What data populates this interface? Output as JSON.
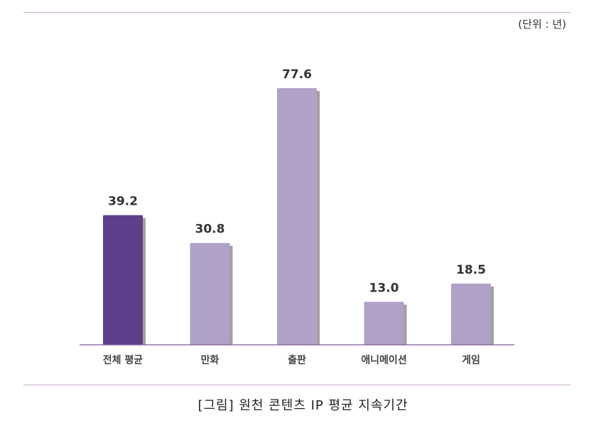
{
  "unit_label": "(단위 : 년)",
  "caption": "[그림] 원천 콘텐츠 IP 평균 지속기간",
  "colors": {
    "highlight_bar": "#5e3f8c",
    "bar": "#b0a1c8",
    "shadow": "#a0a0a0",
    "axis": "#7a5a9a",
    "rule": "#c9a9cc",
    "label_text": "#333333"
  },
  "chart_data": {
    "type": "bar",
    "categories": [
      "전체 평균",
      "만화",
      "출판",
      "애니메이션",
      "게임"
    ],
    "values": [
      39.2,
      30.8,
      77.6,
      13.0,
      18.5
    ],
    "value_labels": [
      "39.2",
      "30.8",
      "77.6",
      "13.0",
      "18.5"
    ],
    "highlight_index": 0,
    "title": "",
    "xlabel": "",
    "ylabel": "",
    "ylim": [
      0,
      77.6
    ],
    "grid": false,
    "legend": "none"
  }
}
